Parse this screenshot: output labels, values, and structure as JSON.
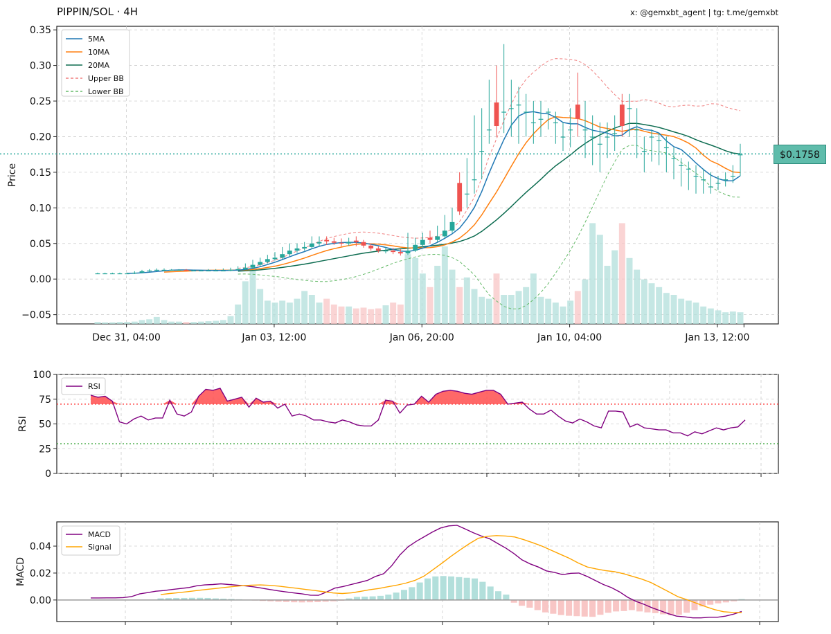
{
  "header": {
    "title": "PIPPIN/SOL · 4H",
    "credit": "x: @gemxbt_agent | tg: t.me/gemxbt"
  },
  "colors": {
    "up": "#26a69a",
    "down": "#ef5350",
    "ma5": "#1f77b4",
    "ma10": "#ff7f0e",
    "ma20": "#0b6b4f",
    "upper_bb": "#f07f7f",
    "lower_bb": "#66bb6a",
    "rsi": "#800080",
    "macd": "#800080",
    "signal": "#ffa500",
    "price_line": "#26a69a"
  },
  "chart_data": [
    {
      "type": "candlestick",
      "ylabel": "Price",
      "ylim": [
        -0.063,
        0.355
      ],
      "yticks": [
        -0.05,
        0.0,
        0.05,
        0.1,
        0.15,
        0.2,
        0.25,
        0.3,
        0.35
      ],
      "ytick_labels": [
        "−0.05",
        "0.00",
        "0.05",
        "0.10",
        "0.15",
        "0.20",
        "0.25",
        "0.30",
        "0.35"
      ],
      "xtick_labels": [
        "Dec 31, 04:00",
        "Jan 03, 12:00",
        "Jan 06, 20:00",
        "Jan 10, 04:00",
        "Jan 13, 12:00"
      ],
      "xtick_index": [
        4,
        24,
        44,
        64,
        84
      ],
      "grid": true,
      "legend": [
        "5MA",
        "10MA",
        "20MA",
        "Upper BB",
        "Lower BB"
      ],
      "legend_position": "top-left",
      "current_price": 0.1758,
      "current_price_label": "$0.1758",
      "close": [
        0.008,
        0.008,
        0.008,
        0.008,
        0.008,
        0.009,
        0.011,
        0.012,
        0.013,
        0.013,
        0.013,
        0.013,
        0.012,
        0.012,
        0.012,
        0.012,
        0.012,
        0.012,
        0.013,
        0.014,
        0.016,
        0.02,
        0.024,
        0.028,
        0.03,
        0.035,
        0.04,
        0.043,
        0.045,
        0.05,
        0.052,
        0.053,
        0.051,
        0.05,
        0.052,
        0.052,
        0.047,
        0.043,
        0.04,
        0.04,
        0.038,
        0.036,
        0.04,
        0.048,
        0.055,
        0.055,
        0.06,
        0.068,
        0.08,
        0.095,
        0.12,
        0.14,
        0.18,
        0.21,
        0.215,
        0.235,
        0.24,
        0.245,
        0.235,
        0.22,
        0.225,
        0.235,
        0.22,
        0.2,
        0.21,
        0.225,
        0.21,
        0.2,
        0.19,
        0.2,
        0.205,
        0.215,
        0.24,
        0.21,
        0.18,
        0.2,
        0.195,
        0.185,
        0.17,
        0.16,
        0.155,
        0.145,
        0.14,
        0.13,
        0.135,
        0.14,
        0.145,
        0.175
      ],
      "open": [
        0.008,
        0.008,
        0.008,
        0.008,
        0.008,
        0.008,
        0.009,
        0.011,
        0.012,
        0.013,
        0.013,
        0.013,
        0.013,
        0.012,
        0.012,
        0.012,
        0.012,
        0.012,
        0.012,
        0.013,
        0.014,
        0.016,
        0.02,
        0.024,
        0.028,
        0.03,
        0.035,
        0.04,
        0.043,
        0.045,
        0.05,
        0.055,
        0.053,
        0.051,
        0.05,
        0.054,
        0.052,
        0.047,
        0.043,
        0.04,
        0.04,
        0.038,
        0.036,
        0.04,
        0.048,
        0.058,
        0.055,
        0.06,
        0.068,
        0.135,
        0.12,
        0.14,
        0.18,
        0.21,
        0.248,
        0.235,
        0.24,
        0.245,
        0.235,
        0.22,
        0.225,
        0.235,
        0.22,
        0.2,
        0.21,
        0.245,
        0.21,
        0.2,
        0.19,
        0.2,
        0.205,
        0.245,
        0.24,
        0.21,
        0.18,
        0.2,
        0.195,
        0.185,
        0.17,
        0.16,
        0.155,
        0.145,
        0.14,
        0.13,
        0.135,
        0.14,
        0.145,
        0.175
      ],
      "high": [
        0.009,
        0.009,
        0.009,
        0.009,
        0.009,
        0.011,
        0.013,
        0.014,
        0.015,
        0.015,
        0.014,
        0.014,
        0.014,
        0.013,
        0.013,
        0.014,
        0.014,
        0.015,
        0.016,
        0.018,
        0.022,
        0.027,
        0.03,
        0.034,
        0.038,
        0.045,
        0.05,
        0.05,
        0.052,
        0.06,
        0.06,
        0.06,
        0.058,
        0.057,
        0.058,
        0.06,
        0.055,
        0.05,
        0.046,
        0.045,
        0.044,
        0.042,
        0.065,
        0.058,
        0.065,
        0.068,
        0.075,
        0.09,
        0.1,
        0.15,
        0.17,
        0.23,
        0.24,
        0.28,
        0.3,
        0.33,
        0.28,
        0.27,
        0.26,
        0.25,
        0.25,
        0.24,
        0.235,
        0.22,
        0.24,
        0.29,
        0.25,
        0.23,
        0.22,
        0.22,
        0.23,
        0.26,
        0.26,
        0.24,
        0.2,
        0.21,
        0.205,
        0.2,
        0.185,
        0.17,
        0.165,
        0.16,
        0.155,
        0.15,
        0.145,
        0.15,
        0.16,
        0.19
      ],
      "low": [
        0.007,
        0.007,
        0.007,
        0.007,
        0.007,
        0.007,
        0.008,
        0.01,
        0.011,
        0.012,
        0.012,
        0.012,
        0.011,
        0.011,
        0.011,
        0.011,
        0.011,
        0.011,
        0.011,
        0.012,
        0.013,
        0.015,
        0.018,
        0.022,
        0.026,
        0.028,
        0.032,
        0.037,
        0.04,
        0.042,
        0.046,
        0.048,
        0.048,
        0.046,
        0.047,
        0.046,
        0.044,
        0.04,
        0.037,
        0.036,
        0.035,
        0.033,
        0.034,
        0.038,
        0.045,
        0.05,
        0.052,
        0.057,
        0.065,
        0.09,
        0.1,
        0.12,
        0.14,
        0.19,
        0.2,
        0.205,
        0.2,
        0.19,
        0.2,
        0.19,
        0.2,
        0.21,
        0.19,
        0.18,
        0.185,
        0.2,
        0.17,
        0.16,
        0.15,
        0.17,
        0.18,
        0.2,
        0.2,
        0.17,
        0.15,
        0.165,
        0.16,
        0.15,
        0.14,
        0.13,
        0.125,
        0.12,
        0.12,
        0.12,
        0.125,
        0.13,
        0.135,
        0.145
      ],
      "volume_label": "volume",
      "volume": [
        0.005,
        0.004,
        0.004,
        0.005,
        0.005,
        0.006,
        0.01,
        0.012,
        0.018,
        0.01,
        0.006,
        0.006,
        0.005,
        0.005,
        0.006,
        0.007,
        0.008,
        0.01,
        0.02,
        0.05,
        0.11,
        0.14,
        0.09,
        0.06,
        0.055,
        0.06,
        0.055,
        0.065,
        0.085,
        0.075,
        0.055,
        0.065,
        0.05,
        0.045,
        0.045,
        0.04,
        0.042,
        0.038,
        0.04,
        0.048,
        0.055,
        0.05,
        0.18,
        0.17,
        0.13,
        0.095,
        0.15,
        0.2,
        0.14,
        0.095,
        0.12,
        0.09,
        0.07,
        0.065,
        0.13,
        0.075,
        0.075,
        0.085,
        0.095,
        0.13,
        0.07,
        0.065,
        0.055,
        0.045,
        0.06,
        0.085,
        0.115,
        0.26,
        0.23,
        0.15,
        0.19,
        0.26,
        0.17,
        0.14,
        0.115,
        0.105,
        0.095,
        0.08,
        0.075,
        0.065,
        0.06,
        0.055,
        0.045,
        0.04,
        0.035,
        0.03,
        0.032,
        0.03
      ]
    },
    {
      "type": "line",
      "ylabel": "RSI",
      "ylim": [
        0,
        100
      ],
      "yticks": [
        0,
        25,
        50,
        75,
        100
      ],
      "overbought": 70,
      "oversold": 30,
      "legend": [
        "RSI"
      ],
      "legend_position": "top-left",
      "grid": true,
      "values": [
        79,
        77,
        78,
        73,
        52,
        50,
        55,
        58,
        54,
        56,
        56,
        74,
        60,
        58,
        62,
        78,
        85,
        84,
        86,
        73,
        75,
        77,
        67,
        76,
        72,
        73,
        66,
        70,
        58,
        60,
        58,
        54,
        54,
        52,
        51,
        54,
        52,
        49,
        48,
        48,
        54,
        74,
        73,
        61,
        69,
        70,
        78,
        72,
        80,
        83,
        84,
        83,
        81,
        80,
        82,
        84,
        84,
        80,
        70,
        71,
        72,
        65,
        60,
        60,
        64,
        58,
        53,
        51,
        55,
        52,
        48,
        46,
        63,
        63,
        62,
        47,
        50,
        46,
        45,
        44,
        44,
        41,
        41,
        38,
        42,
        40,
        43,
        46,
        44,
        46,
        47,
        54
      ]
    },
    {
      "type": "line",
      "ylabel": "MACD",
      "ylim": [
        -0.016,
        0.058
      ],
      "yticks": [
        0.0,
        0.02,
        0.04
      ],
      "ytick_labels": [
        "0.00",
        "0.02",
        "0.04"
      ],
      "legend": [
        "MACD",
        "Signal"
      ],
      "legend_position": "top-left",
      "grid": true,
      "macd": [
        0.0015,
        0.0015,
        0.0016,
        0.0016,
        0.0018,
        0.0025,
        0.0045,
        0.0055,
        0.0065,
        0.007,
        0.0078,
        0.0085,
        0.0092,
        0.0105,
        0.0112,
        0.0115,
        0.012,
        0.0115,
        0.011,
        0.0105,
        0.0098,
        0.0088,
        0.0078,
        0.0068,
        0.006,
        0.0052,
        0.0045,
        0.0036,
        0.0035,
        0.006,
        0.0088,
        0.01,
        0.0115,
        0.013,
        0.0145,
        0.0175,
        0.0195,
        0.0255,
        0.0335,
        0.0395,
        0.0435,
        0.047,
        0.0505,
        0.0535,
        0.055,
        0.0555,
        0.0528,
        0.05,
        0.0475,
        0.0455,
        0.042,
        0.0386,
        0.0345,
        0.0298,
        0.0268,
        0.0245,
        0.0216,
        0.0205,
        0.0188,
        0.0198,
        0.02,
        0.0175,
        0.0145,
        0.0115,
        0.0092,
        0.006,
        0.002,
        -0.001,
        -0.0032,
        -0.0058,
        -0.008,
        -0.0102,
        -0.012,
        -0.0125,
        -0.0133,
        -0.0133,
        -0.0128,
        -0.0128,
        -0.012,
        -0.0105,
        -0.0085
      ],
      "signal": [
        null,
        null,
        null,
        null,
        null,
        null,
        null,
        0.004,
        0.0048,
        0.0055,
        0.0062,
        0.007,
        0.0078,
        0.0085,
        0.0093,
        0.01,
        0.0106,
        0.011,
        0.0112,
        0.0109,
        0.0103,
        0.0095,
        0.0087,
        0.0078,
        0.007,
        0.0061,
        0.0052,
        0.0048,
        0.0053,
        0.0064,
        0.0076,
        0.0085,
        0.0098,
        0.011,
        0.0125,
        0.0145,
        0.0177,
        0.0225,
        0.0274,
        0.0325,
        0.0373,
        0.0418,
        0.0458,
        0.0473,
        0.0478,
        0.0475,
        0.0468,
        0.0448,
        0.0425,
        0.04,
        0.037,
        0.034,
        0.031,
        0.0275,
        0.0245,
        0.023,
        0.0218,
        0.021,
        0.0195,
        0.0175,
        0.0155,
        0.013,
        0.0095,
        0.006,
        0.0024,
        0.0002,
        -0.0024,
        -0.0049,
        -0.0071,
        -0.0087,
        -0.0092,
        -0.0093
      ],
      "histogram": [
        0.0012,
        0.0014,
        0.0015,
        0.0015,
        0.0016,
        0.0016,
        0.0015,
        0.0012,
        0.001,
        0.0008,
        0.0005,
        0.0001,
        -0.0003,
        -0.0007,
        -0.001,
        -0.0013,
        -0.0015,
        -0.0017,
        -0.0018,
        -0.0017,
        -0.0016,
        -0.0013,
        -0.001,
        -0.0005,
        0.0012,
        0.0023,
        0.0025,
        0.0027,
        0.0031,
        0.004,
        0.0055,
        0.0075,
        0.0095,
        0.013,
        0.016,
        0.0175,
        0.0178,
        0.0175,
        0.017,
        0.0165,
        0.016,
        0.0135,
        0.01,
        0.0065,
        0.004,
        -0.002,
        -0.0043,
        -0.0057,
        -0.0075,
        -0.0092,
        -0.0102,
        -0.0112,
        -0.0117,
        -0.012,
        -0.0123,
        -0.0125,
        -0.011,
        -0.0095,
        -0.0085,
        -0.0082,
        -0.0075,
        -0.0085,
        -0.0092,
        -0.0098,
        -0.0106,
        -0.0113,
        -0.011,
        -0.0095,
        -0.0075,
        -0.0048,
        -0.0035,
        -0.0025,
        -0.0018,
        -0.001,
        0.0007
      ]
    }
  ]
}
